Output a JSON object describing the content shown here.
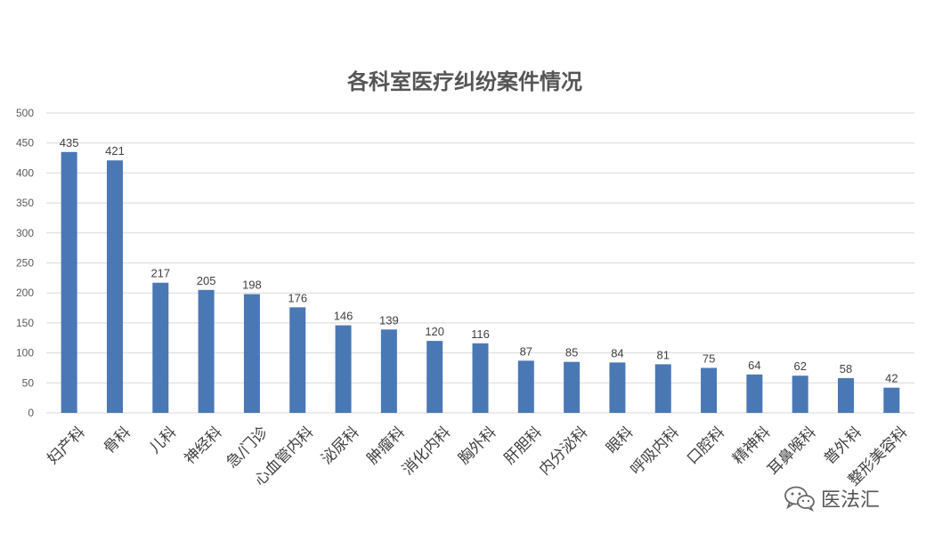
{
  "chart_data": {
    "type": "bar",
    "title": "各科室医疗纠纷案件情况",
    "xlabel": "",
    "ylabel": "",
    "ylim": [
      0,
      500
    ],
    "yticks": [
      0,
      50,
      100,
      150,
      200,
      250,
      300,
      350,
      400,
      450,
      500
    ],
    "grid": true,
    "categories": [
      "妇产科",
      "骨科",
      "儿科",
      "神经科",
      "急/门诊",
      "心血管内科",
      "泌尿科",
      "肿瘤科",
      "消化内科",
      "胸外科",
      "肝胆科",
      "内分泌科",
      "眼科",
      "呼吸内科",
      "口腔科",
      "精神科",
      "耳鼻喉科",
      "普外科",
      "整形美容科"
    ],
    "values": [
      435,
      421,
      217,
      205,
      198,
      176,
      146,
      139,
      120,
      116,
      87,
      85,
      84,
      81,
      75,
      64,
      62,
      58,
      42
    ],
    "bar_color": "#4a78b5"
  },
  "watermark": {
    "text": "医法汇",
    "icon": "wechat-icon"
  }
}
